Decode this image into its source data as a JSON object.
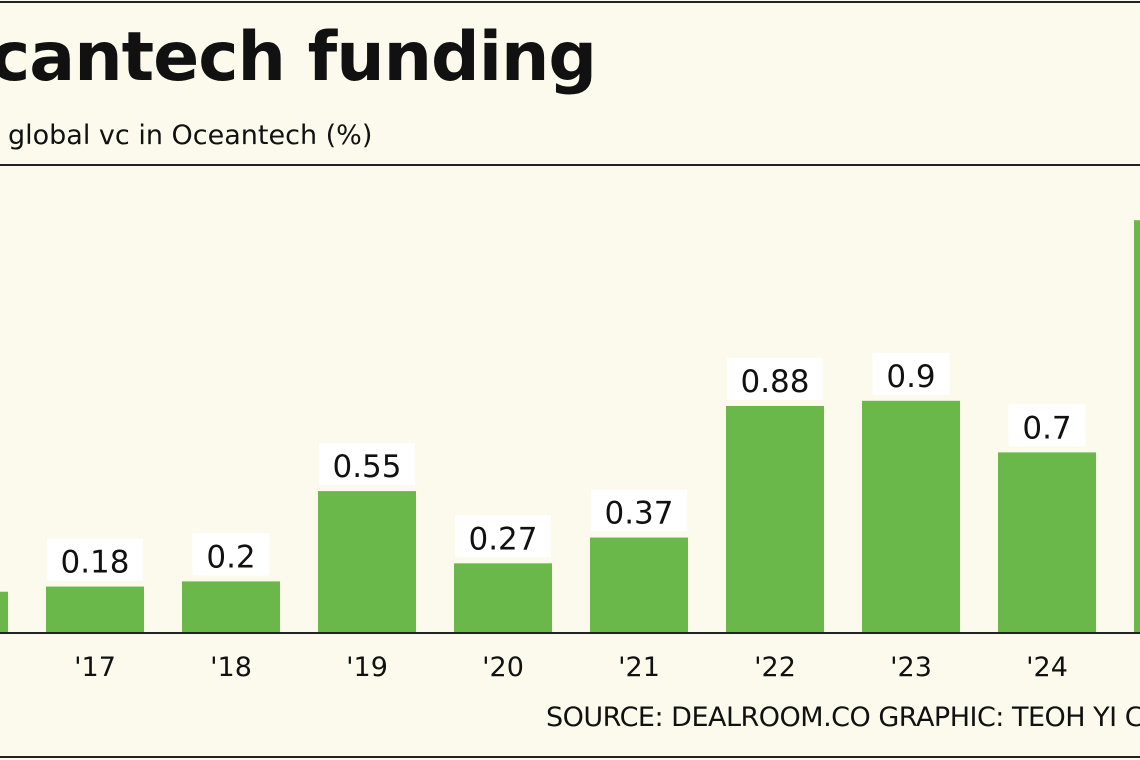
{
  "title": "cantech funding",
  "subtitle": "global vc in Oceantech (%)",
  "footer": "SOURCE: DEALROOM.CO   GRAPHIC: TEOH YI C",
  "colors": {
    "bar": "#6ab84a",
    "background": "#fcfaec",
    "label_bg": "#ffffff"
  },
  "chart_data": {
    "type": "bar",
    "title": "cantech funding",
    "ylabel": "global vc in Oceantech (%)",
    "categories": [
      "",
      "'17",
      "'18",
      "'19",
      "'20",
      "'21",
      "'22",
      "'23",
      "'24",
      ""
    ],
    "values": [
      0.16,
      0.18,
      0.2,
      0.55,
      0.27,
      0.37,
      0.88,
      0.9,
      0.7,
      1.6
    ],
    "value_labels": [
      "",
      "0.18",
      "0.2",
      "0.55",
      "0.27",
      "0.37",
      "0.88",
      "0.9",
      "0.7",
      ""
    ],
    "ylim": [
      0,
      1.7
    ],
    "grid": false,
    "legend": "none"
  }
}
